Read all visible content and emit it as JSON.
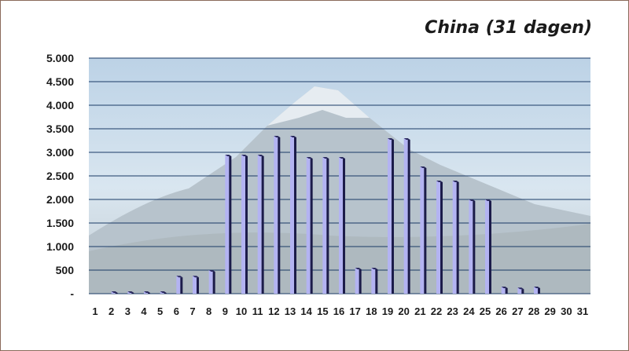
{
  "chart_data": {
    "type": "bar",
    "title": "China (31 dagen)",
    "xlabel": "",
    "ylabel": "",
    "ylim": [
      0,
      5000
    ],
    "yticks": [
      {
        "value": 0,
        "label": "-"
      },
      {
        "value": 500,
        "label": "500"
      },
      {
        "value": 1000,
        "label": "1.000"
      },
      {
        "value": 1500,
        "label": "1.500"
      },
      {
        "value": 2000,
        "label": "2.000"
      },
      {
        "value": 2500,
        "label": "2.500"
      },
      {
        "value": 3000,
        "label": "3.000"
      },
      {
        "value": 3500,
        "label": "3.500"
      },
      {
        "value": 4000,
        "label": "4.000"
      },
      {
        "value": 4500,
        "label": "4.500"
      },
      {
        "value": 5000,
        "label": "5.000"
      }
    ],
    "categories": [
      "1",
      "2",
      "3",
      "4",
      "5",
      "6",
      "7",
      "8",
      "9",
      "10",
      "11",
      "12",
      "13",
      "14",
      "15",
      "16",
      "17",
      "18",
      "19",
      "20",
      "21",
      "22",
      "23",
      "24",
      "25",
      "26",
      "27",
      "28",
      "29",
      "30",
      "31"
    ],
    "values": [
      0,
      50,
      50,
      50,
      50,
      380,
      380,
      500,
      2950,
      2950,
      2950,
      3350,
      3350,
      2900,
      2900,
      2900,
      550,
      550,
      3300,
      3300,
      2700,
      2400,
      2400,
      2000,
      2000,
      150,
      130,
      150,
      0,
      0,
      0
    ],
    "grid": true,
    "legend": "none",
    "colors": {
      "bar_face": "#b3b3f2",
      "bar_side": "#1c1c4a",
      "grid": "#1a3a66",
      "sky": "#c9dbea",
      "mountain": "#a8b8c6"
    }
  }
}
